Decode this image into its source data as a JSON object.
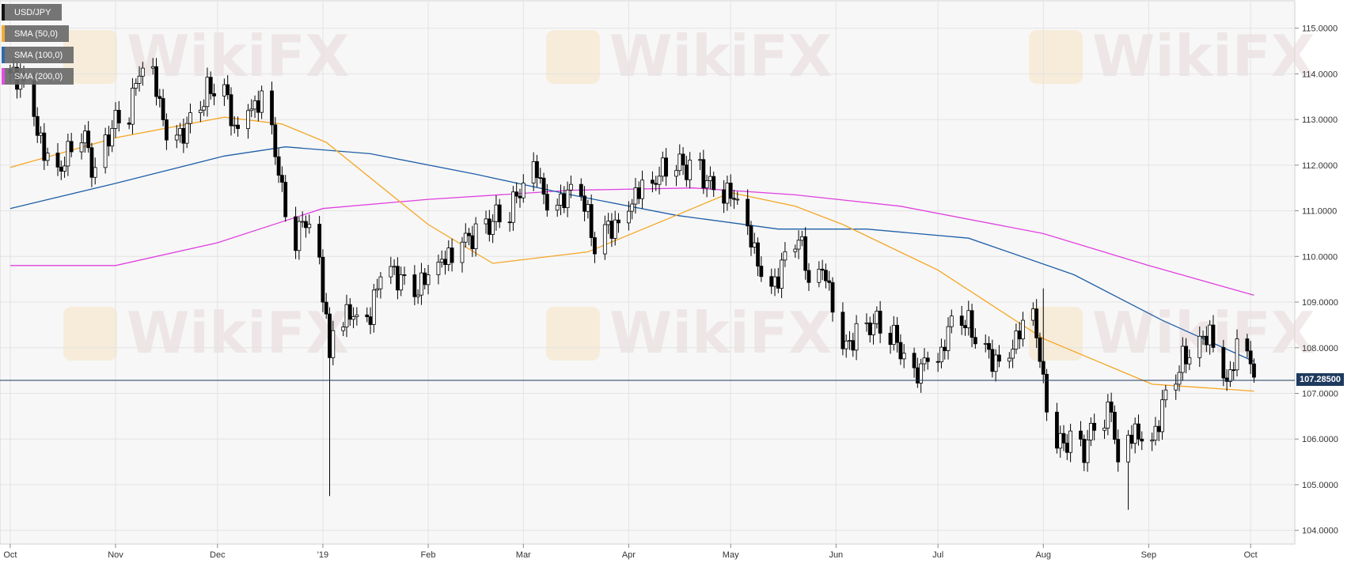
{
  "legend": [
    {
      "label": "USD/JPY",
      "color": "#000000"
    },
    {
      "label": "SMA (50,0)",
      "color": "#f5a623"
    },
    {
      "label": "SMA (100,0)",
      "color": "#1f5fa8"
    },
    {
      "label": "SMA (200,0)",
      "color": "#e040e0"
    }
  ],
  "watermark": "WikiFX",
  "last_price_label": "107.28500",
  "colors": {
    "plot_bg": "#f7f7f7",
    "grid": "#e3e3e3",
    "up": "#ffffff",
    "down": "#000000",
    "sma50": "#f5a623",
    "sma100": "#1f5fa8",
    "sma200": "#e040e0",
    "last_line": "#1e3a5f"
  },
  "chart_data": {
    "type": "candlestick",
    "title": "",
    "xlabel": "",
    "ylabel": "",
    "ylim": [
      103.7,
      115.6
    ],
    "grid": true,
    "y_ticks": [
      "104.0000",
      "105.0000",
      "106.0000",
      "107.0000",
      "108.0000",
      "109.0000",
      "110.0000",
      "111.0000",
      "112.0000",
      "113.0000",
      "114.0000",
      "115.0000"
    ],
    "x_ticks": [
      "Oct",
      "Nov",
      "Dec",
      "'19",
      "Feb",
      "Mar",
      "Apr",
      "May",
      "Jun",
      "Jul",
      "Aug",
      "Sep",
      "Oct"
    ],
    "close_anchors": [
      {
        "date": "2018-10-01",
        "value": 113.9
      },
      {
        "date": "2018-10-04",
        "value": 114.0
      },
      {
        "date": "2018-10-08",
        "value": 113.2
      },
      {
        "date": "2018-10-11",
        "value": 112.2
      },
      {
        "date": "2018-10-16",
        "value": 111.8
      },
      {
        "date": "2018-10-19",
        "value": 112.5
      },
      {
        "date": "2018-10-23",
        "value": 112.6
      },
      {
        "date": "2018-10-26",
        "value": 111.8
      },
      {
        "date": "2018-10-31",
        "value": 112.9
      },
      {
        "date": "2018-11-05",
        "value": 113.2
      },
      {
        "date": "2018-11-08",
        "value": 114.0
      },
      {
        "date": "2018-11-12",
        "value": 113.9
      },
      {
        "date": "2018-11-16",
        "value": 112.8
      },
      {
        "date": "2018-11-20",
        "value": 112.7
      },
      {
        "date": "2018-11-23",
        "value": 112.9
      },
      {
        "date": "2018-11-28",
        "value": 113.6
      },
      {
        "date": "2018-12-03",
        "value": 113.6
      },
      {
        "date": "2018-12-06",
        "value": 112.8
      },
      {
        "date": "2018-12-10",
        "value": 113.3
      },
      {
        "date": "2018-12-14",
        "value": 113.4
      },
      {
        "date": "2018-12-17",
        "value": 112.8
      },
      {
        "date": "2018-12-20",
        "value": 111.3
      },
      {
        "date": "2018-12-24",
        "value": 110.3
      },
      {
        "date": "2018-12-27",
        "value": 110.9
      },
      {
        "date": "2018-12-31",
        "value": 109.7
      },
      {
        "date": "2019-01-02",
        "value": 108.8
      },
      {
        "date": "2019-01-03",
        "value": 107.7
      },
      {
        "date": "2019-01-04",
        "value": 108.5
      },
      {
        "date": "2019-01-08",
        "value": 108.8
      },
      {
        "date": "2019-01-11",
        "value": 108.5
      },
      {
        "date": "2019-01-15",
        "value": 108.6
      },
      {
        "date": "2019-01-18",
        "value": 109.8
      },
      {
        "date": "2019-01-23",
        "value": 109.6
      },
      {
        "date": "2019-01-28",
        "value": 109.3
      },
      {
        "date": "2019-02-01",
        "value": 109.5
      },
      {
        "date": "2019-02-06",
        "value": 109.9
      },
      {
        "date": "2019-02-11",
        "value": 110.4
      },
      {
        "date": "2019-02-15",
        "value": 110.5
      },
      {
        "date": "2019-02-20",
        "value": 110.8
      },
      {
        "date": "2019-02-25",
        "value": 111.0
      },
      {
        "date": "2019-02-28",
        "value": 111.4
      },
      {
        "date": "2019-03-05",
        "value": 111.9
      },
      {
        "date": "2019-03-08",
        "value": 111.2
      },
      {
        "date": "2019-03-13",
        "value": 111.3
      },
      {
        "date": "2019-03-18",
        "value": 111.4
      },
      {
        "date": "2019-03-22",
        "value": 110.2
      },
      {
        "date": "2019-03-26",
        "value": 110.6
      },
      {
        "date": "2019-03-29",
        "value": 110.8
      },
      {
        "date": "2019-04-03",
        "value": 111.4
      },
      {
        "date": "2019-04-08",
        "value": 111.5
      },
      {
        "date": "2019-04-12",
        "value": 112.0
      },
      {
        "date": "2019-04-17",
        "value": 112.0
      },
      {
        "date": "2019-04-22",
        "value": 111.9
      },
      {
        "date": "2019-04-25",
        "value": 111.6
      },
      {
        "date": "2019-04-30",
        "value": 111.4
      },
      {
        "date": "2019-05-03",
        "value": 111.1
      },
      {
        "date": "2019-05-08",
        "value": 110.1
      },
      {
        "date": "2019-05-13",
        "value": 109.3
      },
      {
        "date": "2019-05-16",
        "value": 109.8
      },
      {
        "date": "2019-05-21",
        "value": 110.5
      },
      {
        "date": "2019-05-24",
        "value": 109.4
      },
      {
        "date": "2019-05-29",
        "value": 109.6
      },
      {
        "date": "2019-06-03",
        "value": 108.1
      },
      {
        "date": "2019-06-06",
        "value": 108.2
      },
      {
        "date": "2019-06-11",
        "value": 108.5
      },
      {
        "date": "2019-06-14",
        "value": 108.5
      },
      {
        "date": "2019-06-19",
        "value": 108.1
      },
      {
        "date": "2019-06-24",
        "value": 107.3
      },
      {
        "date": "2019-06-27",
        "value": 107.8
      },
      {
        "date": "2019-07-02",
        "value": 107.9
      },
      {
        "date": "2019-07-05",
        "value": 108.5
      },
      {
        "date": "2019-07-10",
        "value": 108.5
      },
      {
        "date": "2019-07-15",
        "value": 107.9
      },
      {
        "date": "2019-07-19",
        "value": 107.7
      },
      {
        "date": "2019-07-24",
        "value": 108.2
      },
      {
        "date": "2019-07-29",
        "value": 108.7
      },
      {
        "date": "2019-08-01",
        "value": 107.2
      },
      {
        "date": "2019-08-05",
        "value": 105.9
      },
      {
        "date": "2019-08-08",
        "value": 106.0
      },
      {
        "date": "2019-08-13",
        "value": 105.8
      },
      {
        "date": "2019-08-16",
        "value": 106.3
      },
      {
        "date": "2019-08-21",
        "value": 106.6
      },
      {
        "date": "2019-08-23",
        "value": 105.4
      },
      {
        "date": "2019-08-28",
        "value": 106.2
      },
      {
        "date": "2019-09-02",
        "value": 106.0
      },
      {
        "date": "2019-09-06",
        "value": 106.9
      },
      {
        "date": "2019-09-11",
        "value": 107.7
      },
      {
        "date": "2019-09-16",
        "value": 108.0
      },
      {
        "date": "2019-09-19",
        "value": 108.4
      },
      {
        "date": "2019-09-24",
        "value": 107.3
      },
      {
        "date": "2019-09-27",
        "value": 107.9
      },
      {
        "date": "2019-10-01",
        "value": 107.8
      },
      {
        "date": "2019-10-02",
        "value": 107.28
      }
    ],
    "special_wicks": [
      {
        "date": "2019-01-03",
        "low": 104.75
      },
      {
        "date": "2019-08-26",
        "low": 104.45
      },
      {
        "date": "2019-08-01",
        "high": 109.3
      }
    ],
    "sma50": [
      {
        "date": "2018-10-01",
        "value": 111.95
      },
      {
        "date": "2018-11-01",
        "value": 112.6
      },
      {
        "date": "2018-12-03",
        "value": 113.05
      },
      {
        "date": "2018-12-20",
        "value": 112.9
      },
      {
        "date": "2019-01-02",
        "value": 112.5
      },
      {
        "date": "2019-02-01",
        "value": 110.7
      },
      {
        "date": "2019-02-20",
        "value": 109.85
      },
      {
        "date": "2019-03-20",
        "value": 110.1
      },
      {
        "date": "2019-04-15",
        "value": 110.9
      },
      {
        "date": "2019-05-01",
        "value": 111.4
      },
      {
        "date": "2019-05-20",
        "value": 111.1
      },
      {
        "date": "2019-06-03",
        "value": 110.7
      },
      {
        "date": "2019-07-01",
        "value": 109.7
      },
      {
        "date": "2019-08-01",
        "value": 108.2
      },
      {
        "date": "2019-09-02",
        "value": 107.2
      },
      {
        "date": "2019-10-02",
        "value": 107.05
      }
    ],
    "sma100": [
      {
        "date": "2018-10-01",
        "value": 111.05
      },
      {
        "date": "2018-11-01",
        "value": 111.6
      },
      {
        "date": "2018-12-03",
        "value": 112.2
      },
      {
        "date": "2018-12-21",
        "value": 112.4
      },
      {
        "date": "2019-01-15",
        "value": 112.25
      },
      {
        "date": "2019-02-15",
        "value": 111.8
      },
      {
        "date": "2019-03-15",
        "value": 111.35
      },
      {
        "date": "2019-04-15",
        "value": 110.9
      },
      {
        "date": "2019-05-15",
        "value": 110.6
      },
      {
        "date": "2019-06-10",
        "value": 110.6
      },
      {
        "date": "2019-07-10",
        "value": 110.4
      },
      {
        "date": "2019-08-10",
        "value": 109.6
      },
      {
        "date": "2019-09-05",
        "value": 108.6
      },
      {
        "date": "2019-10-02",
        "value": 107.7
      }
    ],
    "sma200": [
      {
        "date": "2018-10-01",
        "value": 109.8
      },
      {
        "date": "2018-11-01",
        "value": 109.8
      },
      {
        "date": "2018-12-01",
        "value": 110.3
      },
      {
        "date": "2019-01-01",
        "value": 111.05
      },
      {
        "date": "2019-02-01",
        "value": 111.25
      },
      {
        "date": "2019-03-15",
        "value": 111.45
      },
      {
        "date": "2019-04-20",
        "value": 111.5
      },
      {
        "date": "2019-05-20",
        "value": 111.35
      },
      {
        "date": "2019-06-20",
        "value": 111.1
      },
      {
        "date": "2019-08-01",
        "value": 110.5
      },
      {
        "date": "2019-09-01",
        "value": 109.8
      },
      {
        "date": "2019-10-02",
        "value": 109.15
      }
    ],
    "last_price": 107.285
  }
}
